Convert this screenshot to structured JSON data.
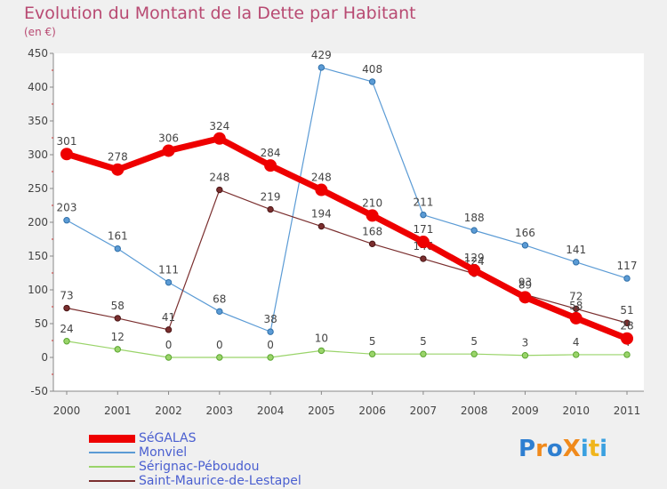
{
  "chart_data": {
    "type": "line",
    "title": "Evolution du Montant de la Dette par Habitant",
    "subtitle": "(en €)",
    "xlabel": "",
    "ylabel": "",
    "x": [
      "2000",
      "2001",
      "2002",
      "2003",
      "2004",
      "2005",
      "2006",
      "2007",
      "2008",
      "2009",
      "2010",
      "2011"
    ],
    "ylim": [
      -50,
      450
    ],
    "yticks": [
      -50,
      0,
      50,
      100,
      150,
      200,
      250,
      300,
      350,
      400,
      450
    ],
    "grid": false,
    "legend_position": "bottom-left",
    "series": [
      {
        "name": "Monviel",
        "color": "#5b9bd5",
        "values": [
          203,
          161,
          111,
          68,
          38,
          429,
          408,
          211,
          188,
          166,
          141,
          117
        ]
      },
      {
        "name": "Sérignac-Péboudou",
        "color": "#9ad46a",
        "values": [
          24,
          12,
          0,
          0,
          0,
          10,
          5,
          5,
          5,
          3,
          4,
          4
        ]
      },
      {
        "name": "Saint-Maurice-de-Lestapel",
        "color": "#7a2e2e",
        "values": [
          73,
          58,
          41,
          248,
          219,
          194,
          168,
          146,
          124,
          93,
          72,
          51
        ]
      },
      {
        "name": "SéGALAS",
        "color": "#ee0000",
        "values": [
          301,
          278,
          306,
          324,
          284,
          248,
          210,
          171,
          129,
          89,
          58,
          28
        ]
      }
    ]
  },
  "legend": [
    {
      "label": "SéGALAS",
      "color": "#ee0000"
    },
    {
      "label": "Monviel",
      "color": "#5b9bd5"
    },
    {
      "label": "Sérignac-Péboudou",
      "color": "#9ad46a"
    },
    {
      "label": "Saint-Maurice-de-Lestapel",
      "color": "#7a2e2e"
    }
  ],
  "logo": {
    "text": "ProXiti",
    "letters": [
      "P",
      "r",
      "o",
      "X",
      "i",
      "t",
      "i"
    ],
    "colors": [
      "#2e7fd1",
      "#f08a1c",
      "#2e7fd1",
      "#f08a1c",
      "#3aa0e0",
      "#f0b51c",
      "#3aa0e0"
    ]
  }
}
